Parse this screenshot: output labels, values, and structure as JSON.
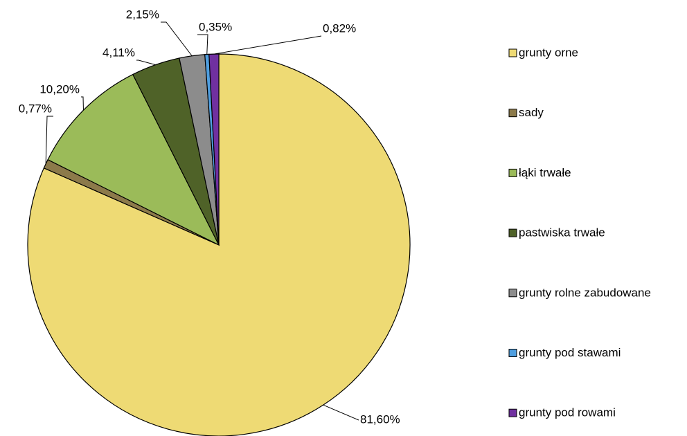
{
  "chart_data": {
    "type": "pie",
    "categories": [
      "grunty orne",
      "sady",
      "łąki trwałe",
      "pastwiska trwałe",
      "grunty rolne zabudowane",
      "grunty pod stawami",
      "grunty pod rowami"
    ],
    "values": [
      81.6,
      0.77,
      10.2,
      4.11,
      2.15,
      0.35,
      0.82
    ],
    "value_labels": [
      "81,60%",
      "0,77%",
      "10,20%",
      "4,11%",
      "2,15%",
      "0,35%",
      "0,82%"
    ],
    "colors": [
      "#eeda74",
      "#8c7a4a",
      "#9bbb59",
      "#4f6228",
      "#8c8c8c",
      "#4f9fe0",
      "#7030a0"
    ],
    "legend": "right"
  }
}
